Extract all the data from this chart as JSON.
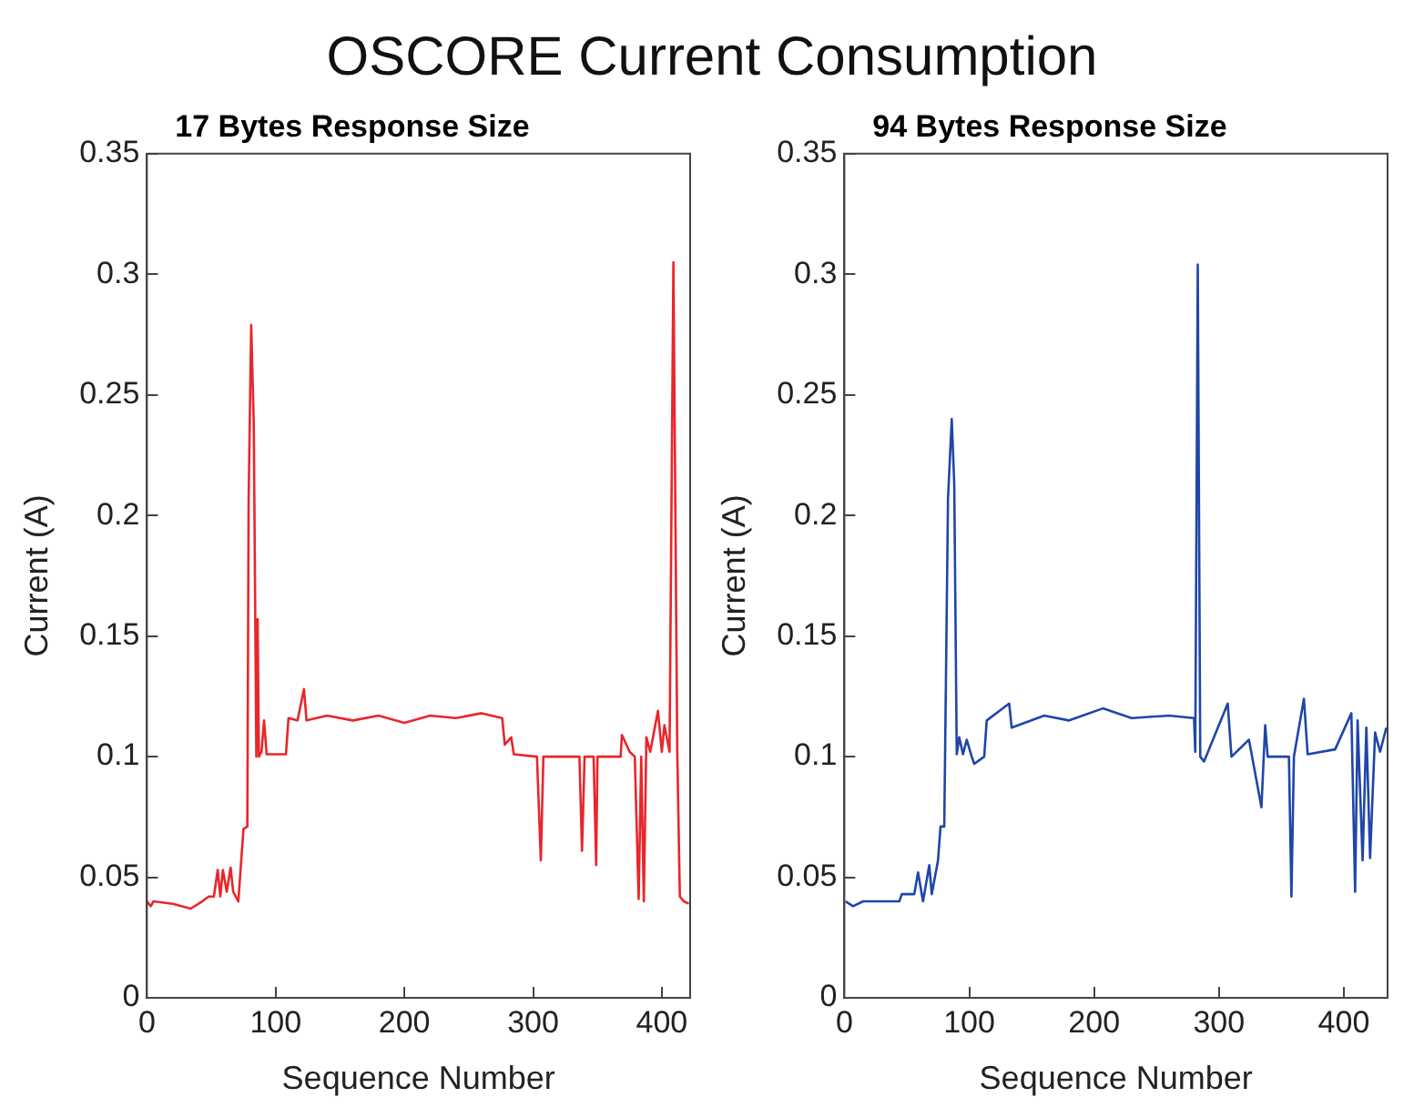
{
  "chart_data": [
    {
      "type": "other",
      "title": "OSCORE Current Consumption"
    },
    {
      "type": "line",
      "title": "17 Bytes Response Size",
      "xlabel": "Sequence Number",
      "ylabel": "Current (A)",
      "xlim": [
        0,
        422
      ],
      "xticks": [
        0,
        100,
        200,
        300,
        400
      ],
      "ylim": [
        0,
        0.35
      ],
      "yticks": [
        0,
        0.05,
        0.1,
        0.15,
        0.2,
        0.25,
        0.3,
        0.35
      ],
      "grid": false,
      "legend": false,
      "marker": "none",
      "line_style": "solid",
      "series": [
        {
          "color": "#e8262b",
          "x": [
            0,
            3,
            5,
            20,
            34,
            43,
            48,
            52,
            55,
            57,
            59,
            62,
            65,
            67,
            71,
            73,
            75,
            78,
            79,
            81,
            83,
            85,
            86,
            87,
            89,
            91,
            93,
            108,
            110,
            117,
            122,
            124,
            140,
            160,
            180,
            200,
            220,
            240,
            260,
            276,
            278,
            283,
            285,
            303,
            306,
            308,
            336,
            338,
            340,
            347,
            349,
            350,
            368,
            369,
            375,
            379,
            382,
            384,
            386,
            388,
            391,
            397,
            400,
            402,
            406,
            409,
            412,
            414,
            417,
            421
          ],
          "values": [
            0.04,
            0.038,
            0.04,
            0.039,
            0.037,
            0.04,
            0.042,
            0.042,
            0.053,
            0.042,
            0.053,
            0.044,
            0.054,
            0.044,
            0.04,
            0.055,
            0.07,
            0.071,
            0.206,
            0.279,
            0.238,
            0.1,
            0.157,
            0.1,
            0.102,
            0.115,
            0.101,
            0.101,
            0.116,
            0.115,
            0.128,
            0.115,
            0.117,
            0.115,
            0.117,
            0.114,
            0.117,
            0.116,
            0.118,
            0.116,
            0.105,
            0.108,
            0.101,
            0.1,
            0.057,
            0.1,
            0.1,
            0.061,
            0.1,
            0.1,
            0.055,
            0.1,
            0.1,
            0.109,
            0.102,
            0.1,
            0.041,
            0.1,
            0.04,
            0.108,
            0.102,
            0.119,
            0.102,
            0.113,
            0.102,
            0.305,
            0.102,
            0.042,
            0.04,
            0.039
          ]
        }
      ]
    },
    {
      "type": "line",
      "title": "94 Bytes Response Size",
      "xlabel": "Sequence Number",
      "ylabel": "Current (A)",
      "xlim": [
        0,
        435
      ],
      "xticks": [
        0,
        100,
        200,
        300,
        400
      ],
      "ylim": [
        0,
        0.35
      ],
      "yticks": [
        0,
        0.05,
        0.1,
        0.15,
        0.2,
        0.25,
        0.3,
        0.35
      ],
      "grid": false,
      "legend": false,
      "marker": "none",
      "line_style": "solid",
      "series": [
        {
          "color": "#1f46a8",
          "x": [
            1,
            7,
            15,
            44,
            46,
            56,
            59,
            63,
            68,
            70,
            75,
            77,
            80,
            83,
            86,
            88,
            90,
            92,
            95,
            98,
            102,
            104,
            112,
            114,
            132,
            134,
            160,
            180,
            207,
            230,
            260,
            280,
            281,
            283,
            285,
            288,
            307,
            310,
            324,
            334,
            337,
            339,
            356,
            358,
            360,
            368,
            371,
            393,
            406,
            409,
            411,
            415,
            418,
            421,
            425,
            429,
            434
          ],
          "values": [
            0.04,
            0.038,
            0.04,
            0.04,
            0.043,
            0.043,
            0.052,
            0.04,
            0.055,
            0.043,
            0.057,
            0.071,
            0.071,
            0.207,
            0.24,
            0.213,
            0.101,
            0.108,
            0.101,
            0.107,
            0.1,
            0.097,
            0.1,
            0.115,
            0.122,
            0.112,
            0.117,
            0.115,
            0.12,
            0.116,
            0.117,
            0.116,
            0.102,
            0.304,
            0.1,
            0.098,
            0.122,
            0.1,
            0.107,
            0.079,
            0.113,
            0.1,
            0.1,
            0.042,
            0.1,
            0.124,
            0.101,
            0.103,
            0.118,
            0.044,
            0.115,
            0.057,
            0.112,
            0.058,
            0.11,
            0.102,
            0.112
          ]
        }
      ]
    }
  ]
}
